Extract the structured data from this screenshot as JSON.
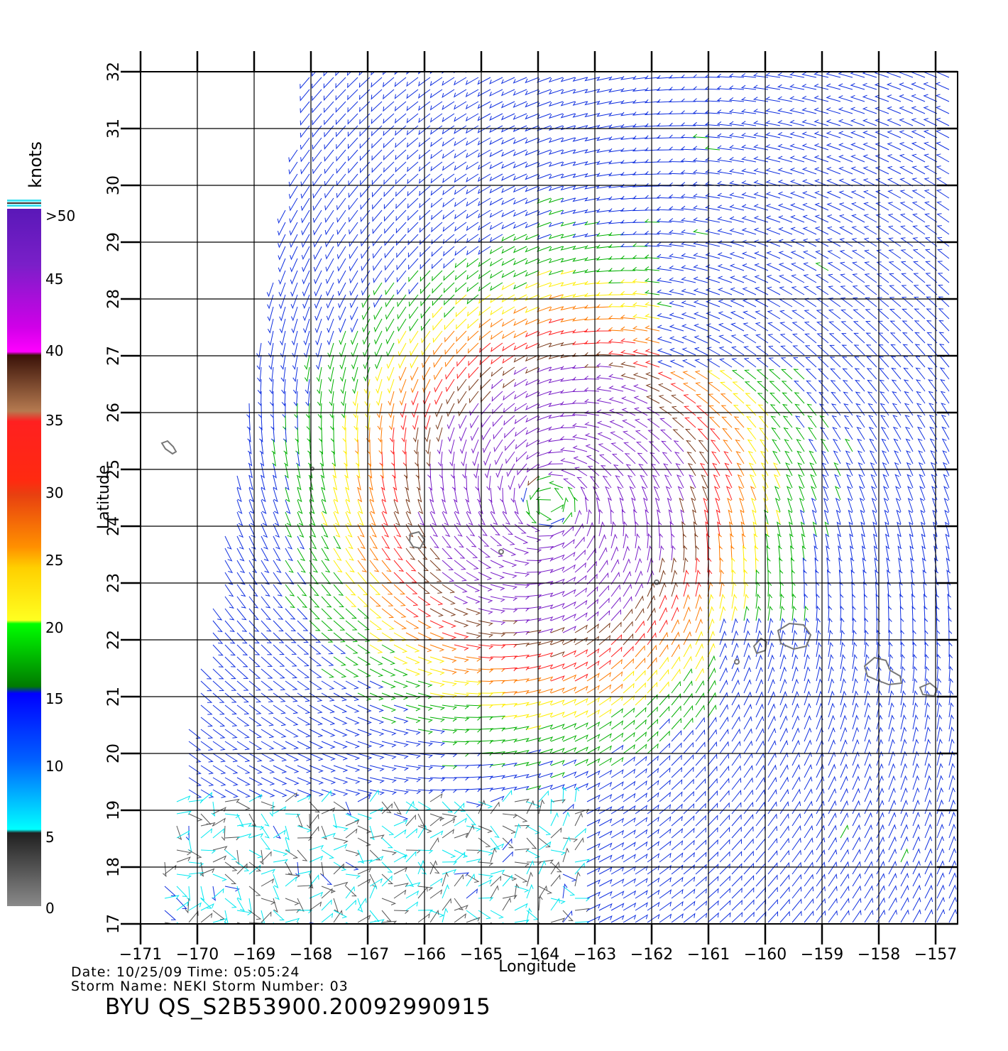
{
  "map": {
    "x_axis_label": "Longitude",
    "y_axis_label": "Latitude",
    "lon_ticks": [
      "−171",
      "−170",
      "−169",
      "−168",
      "−167",
      "−166",
      "−165",
      "−164",
      "−163",
      "−162",
      "−161",
      "−160",
      "−159",
      "−158",
      "−157"
    ],
    "lat_ticks": [
      "17",
      "18",
      "19",
      "20",
      "21",
      "22",
      "23",
      "24",
      "25",
      "26",
      "27",
      "28",
      "29",
      "30",
      "31",
      "32"
    ],
    "lon_range": [
      -171,
      -156.6
    ],
    "lat_range": [
      17,
      32.3
    ],
    "storm_center": {
      "lon": -163.8,
      "lat": 24.4
    }
  },
  "legend": {
    "unit": "knots",
    "labels": [
      ">50",
      "45",
      "40",
      "35",
      "30",
      "25",
      "20",
      "15",
      "10",
      "5",
      "0"
    ],
    "colors": {
      "purple": "#7a1fc8",
      "magenta": "#ff00ff",
      "brown": "#7a3a1a",
      "red": "#ff2020",
      "orange": "#ff7a00",
      "yellow": "#ffee00",
      "green": "#00b000",
      "blue": "#1030e0",
      "cyan": "#00e8f0",
      "gray": "#555555"
    }
  },
  "footer": {
    "date_line": "Date: 10/25/09   Time: 05:05:24",
    "storm_line": "Storm  Name: NEKI   Storm  Number: 03",
    "product": "BYU  QS_S2B53900.20092990915"
  }
}
